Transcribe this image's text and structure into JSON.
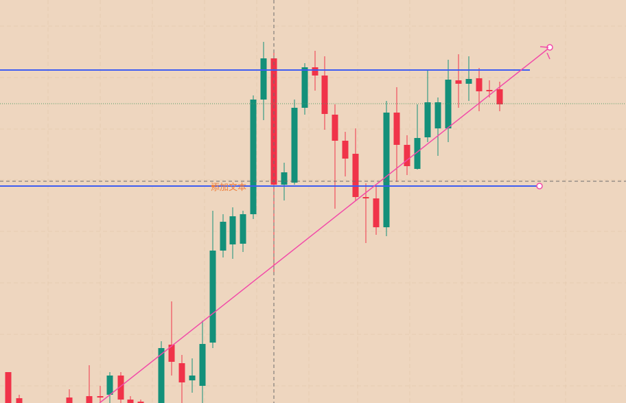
{
  "colors": {
    "background": "#eed6bf",
    "grid": "#e6ccb2",
    "up": "#13907a",
    "down": "#f03349",
    "horizontal_line": "#3d5cf2",
    "trend_line": "#f24aa8",
    "crosshair": "#6b6b6b",
    "price_dotted": "#4d9966",
    "annotation_text": "#f07f3c"
  },
  "annotation": {
    "text": "添加文本"
  },
  "chart_data": {
    "type": "candlestick",
    "ylim": [
      0,
      587
    ],
    "grid": true,
    "candles": [
      {
        "x": 12,
        "open": 45,
        "close": 0,
        "high": 45,
        "low": -10
      },
      {
        "x": 28,
        "open": 7,
        "close": -5,
        "high": 12,
        "low": -10
      },
      {
        "x": 101,
        "open": 8,
        "close": -5,
        "high": 20,
        "low": -10
      },
      {
        "x": 130,
        "open": 10,
        "close": -5,
        "high": 55,
        "low": -10
      },
      {
        "x": 146,
        "open": 10,
        "close": 10,
        "high": 25,
        "low": 0
      },
      {
        "x": 160,
        "open": 12,
        "close": 40,
        "high": 45,
        "low": 0
      },
      {
        "x": 176,
        "open": 40,
        "close": 5,
        "high": 45,
        "low": 0
      },
      {
        "x": 190,
        "open": 5,
        "close": -5,
        "high": 10,
        "low": -10
      },
      {
        "x": 205,
        "open": 2,
        "close": -5,
        "high": 5,
        "low": -10
      },
      {
        "x": 235,
        "open": -5,
        "close": 80,
        "high": 90,
        "low": -10
      },
      {
        "x": 250,
        "open": 85,
        "close": 60,
        "high": 148,
        "low": 40
      },
      {
        "x": 265,
        "open": 58,
        "close": 30,
        "high": 70,
        "low": 0
      },
      {
        "x": 280,
        "open": 33,
        "close": 40,
        "high": 65,
        "low": 15
      },
      {
        "x": 295,
        "open": 25,
        "close": 86,
        "high": 120,
        "low": -10
      },
      {
        "x": 310,
        "open": 88,
        "close": 222,
        "high": 280,
        "low": 80
      },
      {
        "x": 325,
        "open": 222,
        "close": 264,
        "high": 275,
        "low": 212
      },
      {
        "x": 339,
        "open": 231,
        "close": 272,
        "high": 285,
        "low": 210
      },
      {
        "x": 354,
        "open": 232,
        "close": 275,
        "high": 280,
        "low": 220
      },
      {
        "x": 369,
        "open": 275,
        "close": 442,
        "high": 448,
        "low": 268
      },
      {
        "x": 384,
        "open": 442,
        "close": 502,
        "high": 526,
        "low": 412
      },
      {
        "x": 399,
        "open": 502,
        "close": 318,
        "high": 510,
        "low": 187
      },
      {
        "x": 414,
        "open": 318,
        "close": 336,
        "high": 350,
        "low": 295
      },
      {
        "x": 429,
        "open": 321,
        "close": 430,
        "high": 442,
        "low": 318
      },
      {
        "x": 444,
        "open": 430,
        "close": 489,
        "high": 495,
        "low": 420
      },
      {
        "x": 459,
        "open": 489,
        "close": 477,
        "high": 513,
        "low": 455
      },
      {
        "x": 473,
        "open": 477,
        "close": 421,
        "high": 505,
        "low": 398
      },
      {
        "x": 488,
        "open": 420,
        "close": 382,
        "high": 435,
        "low": 283
      },
      {
        "x": 503,
        "open": 382,
        "close": 356,
        "high": 395,
        "low": 330
      },
      {
        "x": 518,
        "open": 363,
        "close": 300,
        "high": 400,
        "low": 295
      },
      {
        "x": 533,
        "open": 300,
        "close": 298,
        "high": 320,
        "low": 233
      },
      {
        "x": 548,
        "open": 298,
        "close": 256,
        "high": 315,
        "low": 245
      },
      {
        "x": 563,
        "open": 256,
        "close": 423,
        "high": 440,
        "low": 243
      },
      {
        "x": 578,
        "open": 423,
        "close": 376,
        "high": 460,
        "low": 322
      },
      {
        "x": 593,
        "open": 376,
        "close": 345,
        "high": 390,
        "low": 332
      },
      {
        "x": 608,
        "open": 341,
        "close": 386,
        "high": 435,
        "low": 340
      },
      {
        "x": 623,
        "open": 387,
        "close": 438,
        "high": 485,
        "low": 380
      },
      {
        "x": 638,
        "open": 400,
        "close": 438,
        "high": 445,
        "low": 360
      },
      {
        "x": 653,
        "open": 400,
        "close": 471,
        "high": 500,
        "low": 380
      },
      {
        "x": 668,
        "open": 470,
        "close": 465,
        "high": 508,
        "low": 430
      },
      {
        "x": 683,
        "open": 465,
        "close": 472,
        "high": 505,
        "low": 440
      },
      {
        "x": 698,
        "open": 473,
        "close": 454,
        "high": 488,
        "low": 425
      },
      {
        "x": 713,
        "open": 456,
        "close": 455,
        "high": 470,
        "low": 445
      },
      {
        "x": 728,
        "open": 457,
        "close": 435,
        "high": 468,
        "low": 425
      }
    ],
    "horizontal_lines": [
      485,
      316
    ],
    "trend_line": {
      "from": [
        145,
        0
      ],
      "to": [
        801,
        518
      ]
    },
    "dotted_level": 436,
    "crosshair": {
      "x": 399,
      "y": 323
    }
  }
}
